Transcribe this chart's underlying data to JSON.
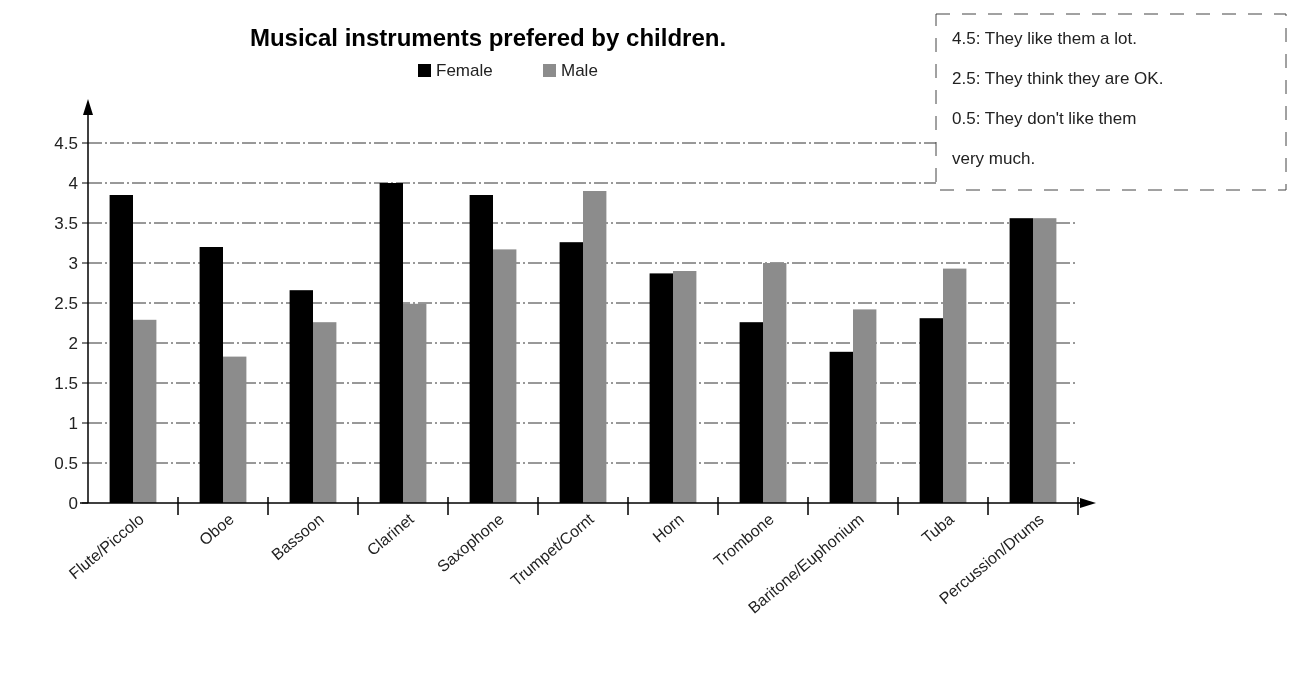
{
  "chart_data": {
    "type": "bar",
    "title": "Musical instruments prefered by children.",
    "categories": [
      "Flute/Piccolo",
      "Oboe",
      "Bassoon",
      "Clarinet",
      "Saxophone",
      "Trumpet/Cornt",
      "Horn",
      "Trombone",
      "Baritone/Euphonium",
      "Tuba",
      "Percussion/Drums"
    ],
    "series": [
      {
        "name": "Female",
        "color": "#000000",
        "values": [
          3.85,
          3.2,
          2.66,
          4.0,
          3.85,
          3.26,
          2.87,
          2.26,
          1.89,
          2.31,
          3.56
        ]
      },
      {
        "name": "Male",
        "color": "#8c8c8c",
        "values": [
          2.29,
          1.83,
          2.26,
          2.49,
          3.17,
          3.9,
          2.9,
          3.0,
          2.42,
          2.93,
          3.56
        ]
      }
    ],
    "ylim": [
      0,
      5
    ],
    "yticks": [
      0,
      0.5,
      1,
      1.5,
      2,
      2.5,
      3,
      3.5,
      4,
      4.5
    ],
    "grid": "y",
    "legend": "top",
    "annotations": [
      "4.5: They like them a lot.",
      "2.5: They think they are OK.",
      "0.5: They don't like them very much."
    ]
  }
}
